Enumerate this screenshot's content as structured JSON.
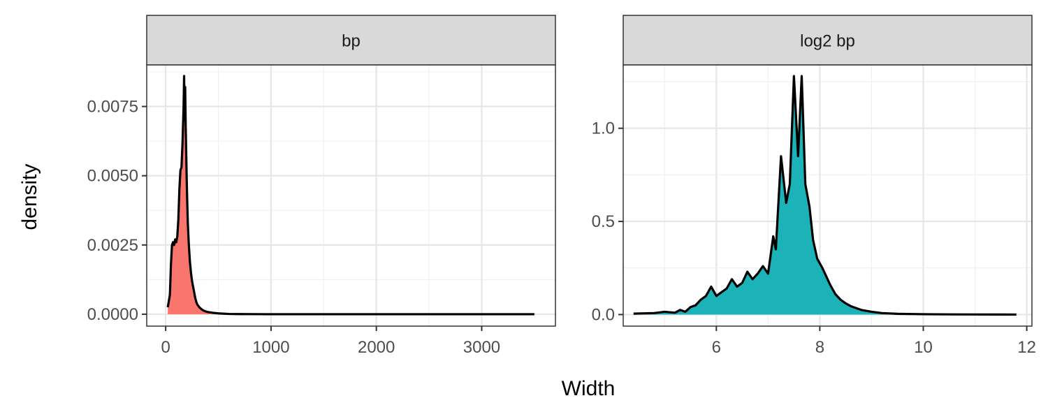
{
  "shared": {
    "xlabel": "Width",
    "ylabel": "density"
  },
  "chart_data": [
    {
      "type": "area",
      "panel_label": "bp",
      "fill_color": "#F8766D",
      "line_color": "#000000",
      "xlim": [
        -180,
        3700
      ],
      "ylim": [
        -0.00043,
        0.009
      ],
      "xticks": [
        0,
        1000,
        2000,
        3000
      ],
      "xtick_labels": [
        "0",
        "1000",
        "2000",
        "3000"
      ],
      "yticks": [
        0,
        0.0025,
        0.005,
        0.0075
      ],
      "ytick_labels": [
        "0.0000",
        "0.0025",
        "0.0050",
        "0.0075"
      ],
      "grid": true,
      "x": [
        20,
        40,
        50,
        60,
        70,
        80,
        90,
        100,
        110,
        120,
        130,
        140,
        150,
        160,
        170,
        175,
        180,
        185,
        190,
        195,
        200,
        205,
        210,
        220,
        230,
        240,
        250,
        260,
        270,
        280,
        290,
        300,
        320,
        340,
        360,
        380,
        400,
        450,
        500,
        600,
        700,
        800,
        1000,
        1500,
        2000,
        2500,
        3000,
        3500
      ],
      "y": [
        0.00025,
        0.0007,
        0.0018,
        0.0025,
        0.0026,
        0.0025,
        0.0027,
        0.0026,
        0.0028,
        0.0034,
        0.0045,
        0.0052,
        0.0053,
        0.0062,
        0.0075,
        0.0086,
        0.007,
        0.0082,
        0.0068,
        0.0058,
        0.0048,
        0.004,
        0.0033,
        0.0025,
        0.0019,
        0.0015,
        0.0012,
        0.001,
        0.0008,
        0.0006,
        0.00045,
        0.00035,
        0.00025,
        0.00018,
        0.00013,
        0.0001,
        8e-05,
        5e-05,
        3e-05,
        1e-05,
        5e-06,
        3e-06,
        0,
        0,
        0,
        0,
        0,
        0
      ]
    },
    {
      "type": "area",
      "panel_label": "log2 bp",
      "fill_color": "#1BB3B8",
      "line_color": "#000000",
      "xlim": [
        4.2,
        12.1
      ],
      "ylim": [
        -0.062,
        1.34
      ],
      "xticks": [
        6,
        8,
        10,
        12
      ],
      "xtick_labels": [
        "6",
        "8",
        "10",
        "12"
      ],
      "yticks": [
        0,
        0.5,
        1.0
      ],
      "ytick_labels": [
        "0.0",
        "0.5",
        "1.0"
      ],
      "grid": true,
      "x": [
        4.4,
        4.8,
        5.0,
        5.2,
        5.3,
        5.4,
        5.5,
        5.6,
        5.7,
        5.8,
        5.9,
        6.0,
        6.1,
        6.2,
        6.3,
        6.4,
        6.5,
        6.6,
        6.7,
        6.8,
        6.9,
        7.0,
        7.1,
        7.15,
        7.25,
        7.35,
        7.42,
        7.5,
        7.58,
        7.65,
        7.72,
        7.8,
        7.87,
        7.95,
        8.05,
        8.1,
        8.2,
        8.3,
        8.4,
        8.5,
        8.6,
        8.7,
        8.8,
        9.0,
        9.2,
        9.5,
        10.0,
        10.5,
        11.0,
        11.5,
        11.8
      ],
      "y": [
        0.005,
        0.008,
        0.015,
        0.01,
        0.025,
        0.015,
        0.04,
        0.05,
        0.08,
        0.1,
        0.15,
        0.1,
        0.12,
        0.14,
        0.19,
        0.15,
        0.17,
        0.23,
        0.19,
        0.22,
        0.26,
        0.22,
        0.42,
        0.35,
        0.85,
        0.6,
        0.7,
        1.28,
        0.85,
        1.28,
        0.7,
        0.58,
        0.4,
        0.3,
        0.25,
        0.22,
        0.16,
        0.11,
        0.08,
        0.06,
        0.045,
        0.035,
        0.025,
        0.015,
        0.008,
        0.004,
        0.002,
        0.001,
        0.0005,
        0.0002,
        0.0001
      ]
    }
  ]
}
